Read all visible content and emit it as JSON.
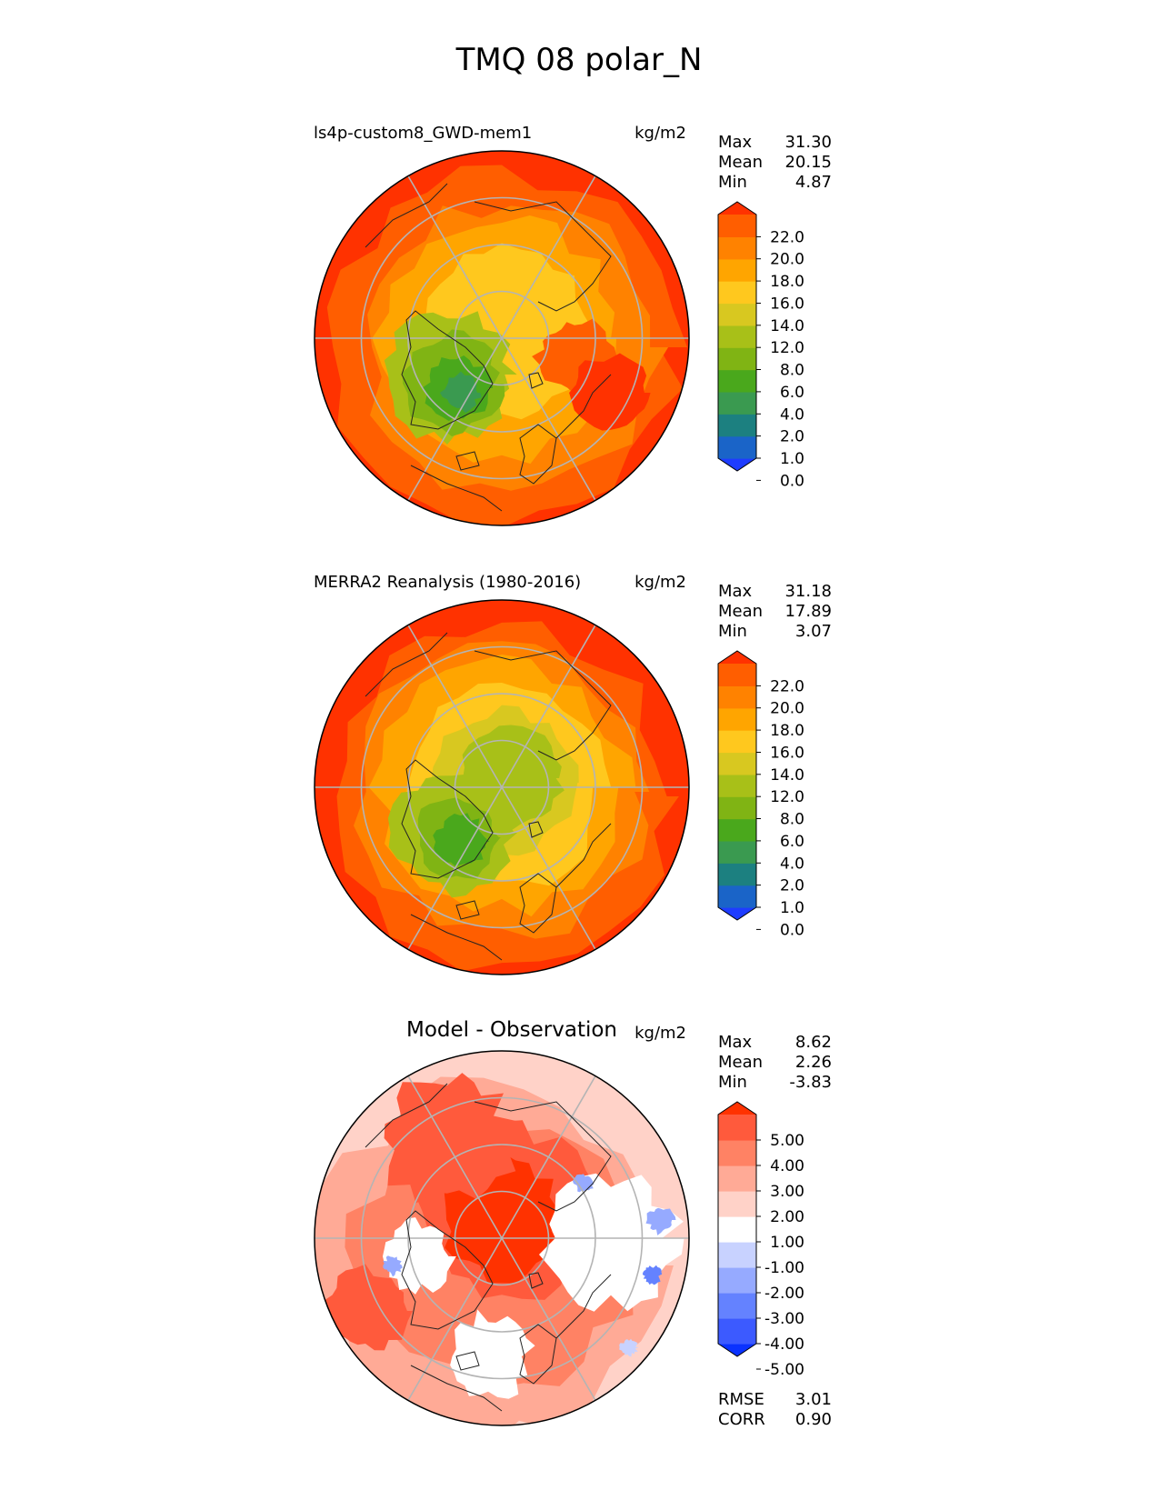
{
  "chart_data": {
    "type": "heatmap",
    "title": "TMQ 08 polar_N",
    "projection": "north polar stereographic",
    "panels": [
      {
        "id": "model",
        "title": "ls4p-custom8_GWD-mem1",
        "units": "kg/m2",
        "stats": [
          {
            "label": "Max",
            "value": "31.30"
          },
          {
            "label": "Mean",
            "value": "20.15"
          },
          {
            "label": "Min",
            "value": "4.87"
          }
        ],
        "colorbar": {
          "ticks": [
            "22.0",
            "20.0",
            "18.0",
            "16.0",
            "14.0",
            "12.0",
            "8.0",
            "6.0",
            "4.0",
            "2.0",
            "1.0",
            "0.0"
          ],
          "colors": [
            "#1e3cff",
            "#1a64c8",
            "#1c8080",
            "#3a9a50",
            "#4aa81c",
            "#80b414",
            "#a8c018",
            "#d8c820",
            "#ffc81e",
            "#ffa500",
            "#ff8200",
            "#ff5e00",
            "#ff3200"
          ]
        }
      },
      {
        "id": "obs",
        "title": "MERRA2 Reanalysis (1980-2016)",
        "units": "kg/m2",
        "stats": [
          {
            "label": "Max",
            "value": "31.18"
          },
          {
            "label": "Mean",
            "value": "17.89"
          },
          {
            "label": "Min",
            "value": "3.07"
          }
        ],
        "colorbar": {
          "ticks": [
            "22.0",
            "20.0",
            "18.0",
            "16.0",
            "14.0",
            "12.0",
            "8.0",
            "6.0",
            "4.0",
            "2.0",
            "1.0",
            "0.0"
          ],
          "colors": [
            "#1e3cff",
            "#1a64c8",
            "#1c8080",
            "#3a9a50",
            "#4aa81c",
            "#80b414",
            "#a8c018",
            "#d8c820",
            "#ffc81e",
            "#ffa500",
            "#ff8200",
            "#ff5e00",
            "#ff3200"
          ]
        }
      },
      {
        "id": "diff",
        "title": "Model - Observation",
        "units": "kg/m2",
        "stats": [
          {
            "label": "Max",
            "value": "8.62"
          },
          {
            "label": "Mean",
            "value": "2.26"
          },
          {
            "label": "Min",
            "value": "-3.83"
          }
        ],
        "extra_stats": [
          {
            "label": "RMSE",
            "value": "3.01"
          },
          {
            "label": "CORR",
            "value": "0.90"
          }
        ],
        "colorbar": {
          "ticks": [
            "5.00",
            "4.00",
            "3.00",
            "2.00",
            "1.00",
            "-1.00",
            "-2.00",
            "-3.00",
            "-4.00",
            "-5.00"
          ],
          "colors": [
            "#0a32ff",
            "#3c5aff",
            "#6482ff",
            "#96aaff",
            "#c8d2ff",
            "#ffffff",
            "#ffd2c8",
            "#ffaa96",
            "#ff8264",
            "#ff5a3c",
            "#ff3200"
          ]
        }
      }
    ]
  }
}
